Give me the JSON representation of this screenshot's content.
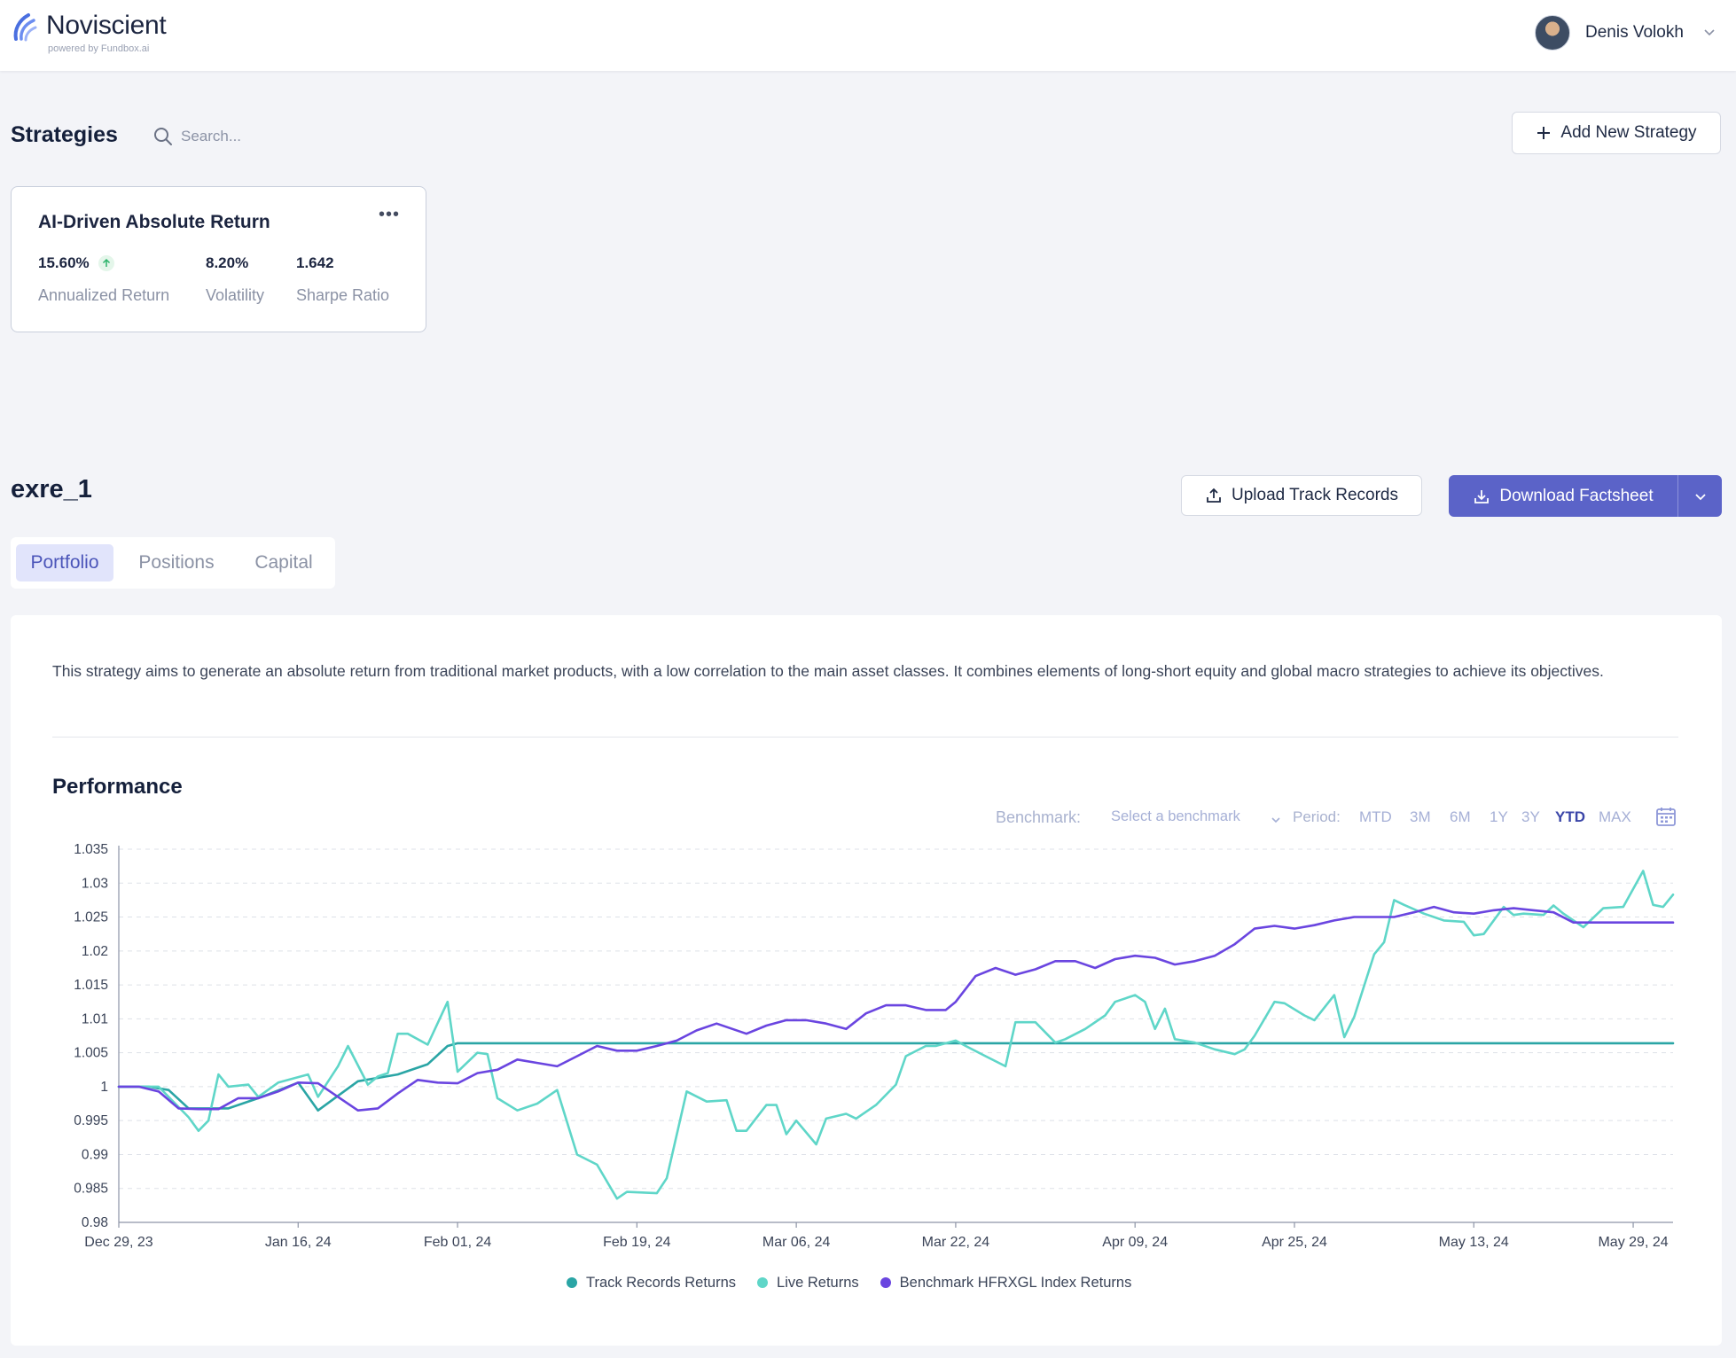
{
  "header": {
    "brand_name": "Noviscient",
    "brand_sub": "powered by Fundbox.ai",
    "user_name": "Denis Volokh"
  },
  "strategies": {
    "title": "Strategies",
    "search_placeholder": "Search...",
    "add_button": "Add New Strategy",
    "card": {
      "title": "AI-Driven Absolute Return",
      "metrics": [
        {
          "value": "15.60%",
          "label": "Annualized Return"
        },
        {
          "value": "8.20%",
          "label": "Volatility"
        },
        {
          "value": "1.642",
          "label": "Sharpe Ratio"
        }
      ]
    }
  },
  "detail": {
    "name": "exre_1",
    "upload_button": "Upload Track Records",
    "download_button": "Download Factsheet",
    "tabs": [
      "Portfolio",
      "Positions",
      "Capital"
    ],
    "active_tab": "Portfolio",
    "description": "This strategy aims to generate an absolute return from traditional market products, with a low correlation to the main asset classes. It combines elements of long-short equity and global macro strategies to achieve its objectives.",
    "performance_title": "Performance",
    "benchmark_label": "Benchmark:",
    "benchmark_placeholder": "Select a benchmark",
    "period_label": "Period:",
    "periods": [
      "MTD",
      "3M",
      "6M",
      "1Y",
      "3Y",
      "YTD",
      "MAX"
    ],
    "active_period": "YTD"
  },
  "colors": {
    "accent": "#5b63c8",
    "track_records": "#2aa5a5",
    "live": "#5fd6c8",
    "benchmark": "#6a45e0"
  },
  "chart_data": {
    "type": "line",
    "title": "",
    "xlabel": "",
    "ylabel": "",
    "x_start": "Dec 29, 23",
    "x_end": "Jun 02, 24",
    "x_ticks": [
      "Dec 29, 23",
      "Jan 16, 24",
      "Feb 01, 24",
      "Feb 19, 24",
      "Mar 06, 24",
      "Mar 22, 24",
      "Apr 09, 24",
      "Apr 25, 24",
      "May 13, 24",
      "May 29, 24"
    ],
    "y_ticks": [
      "0.98",
      "0.985",
      "0.99",
      "0.995",
      "1",
      "1.005",
      "1.01",
      "1.015",
      "1.02",
      "1.025",
      "1.03",
      "1.035"
    ],
    "ylim": [
      0.98,
      1.035
    ],
    "grid": true,
    "legend_position": "bottom",
    "series": [
      {
        "name": "Track Records Returns",
        "color": "#2aa5a5",
        "points": [
          [
            "Dec 29, 23",
            1.0
          ],
          [
            "Jan 01, 24",
            1.0
          ],
          [
            "Jan 03, 24",
            0.9995
          ],
          [
            "Jan 05, 24",
            0.9968
          ],
          [
            "Jan 09, 24",
            0.9968
          ],
          [
            "Jan 12, 24",
            0.9983
          ],
          [
            "Jan 16, 24",
            1.0006
          ],
          [
            "Jan 18, 24",
            0.9965
          ],
          [
            "Jan 22, 24",
            1.0008
          ],
          [
            "Jan 26, 24",
            1.0018
          ],
          [
            "Jan 29, 24",
            1.0033
          ],
          [
            "Jan 31, 24",
            1.006
          ],
          [
            "Feb 01, 24",
            1.0064
          ],
          [
            "Jun 02, 24",
            1.0064
          ]
        ]
      },
      {
        "name": "Live Returns",
        "color": "#5fd6c8",
        "points": [
          [
            "Dec 29, 23",
            1.0
          ],
          [
            "Jan 02, 24",
            1.0
          ],
          [
            "Jan 05, 24",
            0.9955
          ],
          [
            "Jan 06, 24",
            0.9935
          ],
          [
            "Jan 07, 24",
            0.995
          ],
          [
            "Jan 08, 24",
            1.0018
          ],
          [
            "Jan 09, 24",
            1.0
          ],
          [
            "Jan 11, 24",
            1.0003
          ],
          [
            "Jan 12, 24",
            0.9985
          ],
          [
            "Jan 14, 24",
            1.0006
          ],
          [
            "Jan 17, 24",
            1.0018
          ],
          [
            "Jan 18, 24",
            0.9985
          ],
          [
            "Jan 20, 24",
            1.003
          ],
          [
            "Jan 21, 24",
            1.006
          ],
          [
            "Jan 23, 24",
            1.0003
          ],
          [
            "Jan 24, 24",
            1.0015
          ],
          [
            "Jan 25, 24",
            1.002
          ],
          [
            "Jan 26, 24",
            1.0078
          ],
          [
            "Jan 27, 24",
            1.0078
          ],
          [
            "Jan 29, 24",
            1.0062
          ],
          [
            "Jan 31, 24",
            1.0125
          ],
          [
            "Feb 01, 24",
            1.0022
          ],
          [
            "Feb 03, 24",
            1.005
          ],
          [
            "Feb 04, 24",
            1.0048
          ],
          [
            "Feb 05, 24",
            0.9983
          ],
          [
            "Feb 07, 24",
            0.9965
          ],
          [
            "Feb 09, 24",
            0.9975
          ],
          [
            "Feb 11, 24",
            0.9995
          ],
          [
            "Feb 13, 24",
            0.99
          ],
          [
            "Feb 15, 24",
            0.9885
          ],
          [
            "Feb 17, 24",
            0.9835
          ],
          [
            "Feb 18, 24",
            0.9845
          ],
          [
            "Feb 21, 24",
            0.9843
          ],
          [
            "Feb 22, 24",
            0.9865
          ],
          [
            "Feb 24, 24",
            0.9993
          ],
          [
            "Feb 26, 24",
            0.9978
          ],
          [
            "Feb 28, 24",
            0.998
          ],
          [
            "Feb 29, 24",
            0.9935
          ],
          [
            "Mar 01, 24",
            0.9935
          ],
          [
            "Mar 03, 24",
            0.9973
          ],
          [
            "Mar 04, 24",
            0.9973
          ],
          [
            "Mar 05, 24",
            0.993
          ],
          [
            "Mar 06, 24",
            0.995
          ],
          [
            "Mar 08, 24",
            0.9915
          ],
          [
            "Mar 09, 24",
            0.9953
          ],
          [
            "Mar 11, 24",
            0.996
          ],
          [
            "Mar 12, 24",
            0.9953
          ],
          [
            "Mar 14, 24",
            0.9973
          ],
          [
            "Mar 16, 24",
            1.0003
          ],
          [
            "Mar 17, 24",
            1.0045
          ],
          [
            "Mar 19, 24",
            1.006
          ],
          [
            "Mar 20, 24",
            1.006
          ],
          [
            "Mar 22, 24",
            1.0068
          ],
          [
            "Mar 23, 24",
            1.006
          ],
          [
            "Mar 25, 24",
            1.0045
          ],
          [
            "Mar 27, 24",
            1.003
          ],
          [
            "Mar 28, 24",
            1.0095
          ],
          [
            "Mar 30, 24",
            1.0095
          ],
          [
            "Apr 01, 24",
            1.0065
          ],
          [
            "Apr 02, 24",
            1.007
          ],
          [
            "Apr 04, 24",
            1.0085
          ],
          [
            "Apr 06, 24",
            1.0105
          ],
          [
            "Apr 07, 24",
            1.0125
          ],
          [
            "Apr 09, 24",
            1.0135
          ],
          [
            "Apr 10, 24",
            1.0125
          ],
          [
            "Apr 11, 24",
            1.0085
          ],
          [
            "Apr 12, 24",
            1.0115
          ],
          [
            "Apr 13, 24",
            1.007
          ],
          [
            "Apr 15, 24",
            1.0065
          ],
          [
            "Apr 17, 24",
            1.0055
          ],
          [
            "Apr 19, 24",
            1.0048
          ],
          [
            "Apr 20, 24",
            1.0055
          ],
          [
            "Apr 21, 24",
            1.0075
          ],
          [
            "Apr 23, 24",
            1.0125
          ],
          [
            "Apr 24, 24",
            1.0123
          ],
          [
            "Apr 26, 24",
            1.0105
          ],
          [
            "Apr 27, 24",
            1.0098
          ],
          [
            "Apr 29, 24",
            1.0135
          ],
          [
            "Apr 30, 24",
            1.0073
          ],
          [
            "May 01, 24",
            1.0103
          ],
          [
            "May 03, 24",
            1.0195
          ],
          [
            "May 04, 24",
            1.0213
          ],
          [
            "May 05, 24",
            1.0275
          ],
          [
            "May 06, 24",
            1.0268
          ],
          [
            "May 08, 24",
            1.0255
          ],
          [
            "May 10, 24",
            1.0245
          ],
          [
            "May 12, 24",
            1.0243
          ],
          [
            "May 13, 24",
            1.0223
          ],
          [
            "May 14, 24",
            1.0225
          ],
          [
            "May 16, 24",
            1.0265
          ],
          [
            "May 17, 24",
            1.0253
          ],
          [
            "May 18, 24",
            1.0255
          ],
          [
            "May 20, 24",
            1.0253
          ],
          [
            "May 21, 24",
            1.0267
          ],
          [
            "May 22, 24",
            1.0255
          ],
          [
            "May 24, 24",
            1.0235
          ],
          [
            "May 26, 24",
            1.0263
          ],
          [
            "May 28, 24",
            1.0265
          ],
          [
            "May 30, 24",
            1.0318
          ],
          [
            "May 31, 24",
            1.0268
          ],
          [
            "Jun 01, 24",
            1.0265
          ],
          [
            "Jun 02, 24",
            1.0283
          ]
        ]
      },
      {
        "name": "Benchmark HFRXGL Index Returns",
        "color": "#6a45e0",
        "points": [
          [
            "Dec 29, 23",
            1.0
          ],
          [
            "Dec 31, 23",
            1.0
          ],
          [
            "Jan 02, 24",
            0.9993
          ],
          [
            "Jan 04, 24",
            0.9968
          ],
          [
            "Jan 06, 24",
            0.9967
          ],
          [
            "Jan 08, 24",
            0.9967
          ],
          [
            "Jan 10, 24",
            0.9983
          ],
          [
            "Jan 12, 24",
            0.9983
          ],
          [
            "Jan 14, 24",
            0.9993
          ],
          [
            "Jan 16, 24",
            1.0006
          ],
          [
            "Jan 18, 24",
            1.0005
          ],
          [
            "Jan 20, 24",
            0.9985
          ],
          [
            "Jan 22, 24",
            0.9965
          ],
          [
            "Jan 24, 24",
            0.9968
          ],
          [
            "Jan 26, 24",
            0.999
          ],
          [
            "Jan 28, 24",
            1.001
          ],
          [
            "Jan 30, 24",
            1.0006
          ],
          [
            "Feb 01, 24",
            1.0005
          ],
          [
            "Feb 03, 24",
            1.002
          ],
          [
            "Feb 05, 24",
            1.0025
          ],
          [
            "Feb 07, 24",
            1.004
          ],
          [
            "Feb 09, 24",
            1.0035
          ],
          [
            "Feb 11, 24",
            1.003
          ],
          [
            "Feb 13, 24",
            1.0045
          ],
          [
            "Feb 15, 24",
            1.006
          ],
          [
            "Feb 17, 24",
            1.0053
          ],
          [
            "Feb 19, 24",
            1.0053
          ],
          [
            "Feb 21, 24",
            1.006
          ],
          [
            "Feb 23, 24",
            1.0068
          ],
          [
            "Feb 25, 24",
            1.0083
          ],
          [
            "Feb 27, 24",
            1.0093
          ],
          [
            "Mar 01, 24",
            1.0078
          ],
          [
            "Mar 03, 24",
            1.009
          ],
          [
            "Mar 05, 24",
            1.0098
          ],
          [
            "Mar 07, 24",
            1.0098
          ],
          [
            "Mar 09, 24",
            1.0093
          ],
          [
            "Mar 11, 24",
            1.0085
          ],
          [
            "Mar 13, 24",
            1.0108
          ],
          [
            "Mar 15, 24",
            1.012
          ],
          [
            "Mar 17, 24",
            1.012
          ],
          [
            "Mar 19, 24",
            1.0113
          ],
          [
            "Mar 21, 24",
            1.0113
          ],
          [
            "Mar 22, 24",
            1.0125
          ],
          [
            "Mar 24, 24",
            1.0163
          ],
          [
            "Mar 26, 24",
            1.0175
          ],
          [
            "Mar 28, 24",
            1.0165
          ],
          [
            "Mar 30, 24",
            1.0173
          ],
          [
            "Apr 01, 24",
            1.0185
          ],
          [
            "Apr 03, 24",
            1.0185
          ],
          [
            "Apr 05, 24",
            1.0175
          ],
          [
            "Apr 07, 24",
            1.0188
          ],
          [
            "Apr 09, 24",
            1.0193
          ],
          [
            "Apr 11, 24",
            1.019
          ],
          [
            "Apr 13, 24",
            1.018
          ],
          [
            "Apr 15, 24",
            1.0185
          ],
          [
            "Apr 17, 24",
            1.0193
          ],
          [
            "Apr 19, 24",
            1.021
          ],
          [
            "Apr 21, 24",
            1.0233
          ],
          [
            "Apr 23, 24",
            1.0237
          ],
          [
            "Apr 25, 24",
            1.0233
          ],
          [
            "Apr 27, 24",
            1.0238
          ],
          [
            "Apr 29, 24",
            1.0245
          ],
          [
            "May 01, 24",
            1.025
          ],
          [
            "May 03, 24",
            1.025
          ],
          [
            "May 05, 24",
            1.025
          ],
          [
            "May 07, 24",
            1.0257
          ],
          [
            "May 09, 24",
            1.0265
          ],
          [
            "May 11, 24",
            1.0257
          ],
          [
            "May 13, 24",
            1.0255
          ],
          [
            "May 15, 24",
            1.026
          ],
          [
            "May 17, 24",
            1.0263
          ],
          [
            "May 19, 24",
            1.026
          ],
          [
            "May 21, 24",
            1.0257
          ],
          [
            "May 23, 24",
            1.0242
          ],
          [
            "May 25, 24",
            1.0242
          ],
          [
            "Jun 02, 24",
            1.0242
          ]
        ]
      }
    ]
  }
}
